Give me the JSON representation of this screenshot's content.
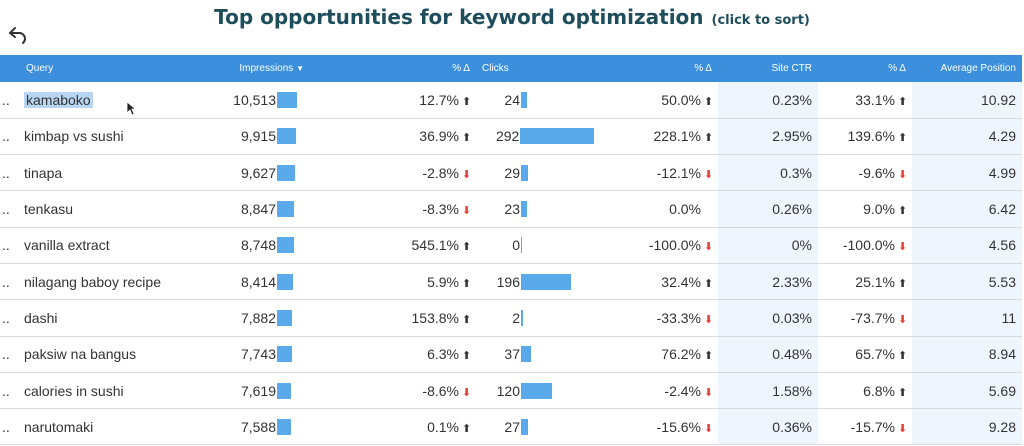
{
  "header": {
    "title": "Top opportunities for keyword optimization",
    "subtitle": "(click to sort)"
  },
  "table": {
    "columns": {
      "query": "Query",
      "impressions": "Impressions",
      "sort_indicator": "▼",
      "impressions_delta": "% Δ",
      "clicks": "Clicks",
      "clicks_delta": "% Δ",
      "site_ctr": "Site CTR",
      "ctr_delta": "% Δ",
      "avg_position": "Average Position"
    },
    "row_marker": "..",
    "rows": [
      {
        "query": "kamaboko",
        "impressions": "10,513",
        "imp_bar": 10513,
        "imp_delta": "12.7%",
        "imp_dir": "up",
        "clicks": "24",
        "clk_bar": 24,
        "clk_delta": "50.0%",
        "clk_dir": "up",
        "ctr": "0.23%",
        "ctr_delta": "33.1%",
        "ctr_dir": "up",
        "position": "10.92"
      },
      {
        "query": "kimbap vs sushi",
        "impressions": "9,915",
        "imp_bar": 9915,
        "imp_delta": "36.9%",
        "imp_dir": "up",
        "clicks": "292",
        "clk_bar": 292,
        "clk_delta": "228.1%",
        "clk_dir": "up",
        "ctr": "2.95%",
        "ctr_delta": "139.6%",
        "ctr_dir": "up",
        "position": "4.29"
      },
      {
        "query": "tinapa",
        "impressions": "9,627",
        "imp_bar": 9627,
        "imp_delta": "-2.8%",
        "imp_dir": "down",
        "clicks": "29",
        "clk_bar": 29,
        "clk_delta": "-12.1%",
        "clk_dir": "down",
        "ctr": "0.3%",
        "ctr_delta": "-9.6%",
        "ctr_dir": "down",
        "position": "4.99"
      },
      {
        "query": "tenkasu",
        "impressions": "8,847",
        "imp_bar": 8847,
        "imp_delta": "-8.3%",
        "imp_dir": "down",
        "clicks": "23",
        "clk_bar": 23,
        "clk_delta": "0.0%",
        "clk_dir": "none",
        "ctr": "0.26%",
        "ctr_delta": "9.0%",
        "ctr_dir": "up",
        "position": "6.42"
      },
      {
        "query": "vanilla extract",
        "impressions": "8,748",
        "imp_bar": 8748,
        "imp_delta": "545.1%",
        "imp_dir": "up",
        "clicks": "0",
        "clk_bar": 0,
        "clk_delta": "-100.0%",
        "clk_dir": "down",
        "ctr": "0%",
        "ctr_delta": "-100.0%",
        "ctr_dir": "down",
        "position": "4.56"
      },
      {
        "query": "nilagang baboy recipe",
        "impressions": "8,414",
        "imp_bar": 8414,
        "imp_delta": "5.9%",
        "imp_dir": "up",
        "clicks": "196",
        "clk_bar": 196,
        "clk_delta": "32.4%",
        "clk_dir": "up",
        "ctr": "2.33%",
        "ctr_delta": "25.1%",
        "ctr_dir": "up",
        "position": "5.53"
      },
      {
        "query": "dashi",
        "impressions": "7,882",
        "imp_bar": 7882,
        "imp_delta": "153.8%",
        "imp_dir": "up",
        "clicks": "2",
        "clk_bar": 2,
        "clk_delta": "-33.3%",
        "clk_dir": "down",
        "ctr": "0.03%",
        "ctr_delta": "-73.7%",
        "ctr_dir": "down",
        "position": "11"
      },
      {
        "query": "paksiw na bangus",
        "impressions": "7,743",
        "imp_bar": 7743,
        "imp_delta": "6.3%",
        "imp_dir": "up",
        "clicks": "37",
        "clk_bar": 37,
        "clk_delta": "76.2%",
        "clk_dir": "up",
        "ctr": "0.48%",
        "ctr_delta": "65.7%",
        "ctr_dir": "up",
        "position": "8.94"
      },
      {
        "query": "calories in sushi",
        "impressions": "7,619",
        "imp_bar": 7619,
        "imp_delta": "-8.6%",
        "imp_dir": "down",
        "clicks": "120",
        "clk_bar": 120,
        "clk_delta": "-2.4%",
        "clk_dir": "down",
        "ctr": "1.58%",
        "ctr_delta": "6.8%",
        "ctr_dir": "up",
        "position": "5.69"
      },
      {
        "query": "narutomaki",
        "impressions": "7,588",
        "imp_bar": 7588,
        "imp_delta": "0.1%",
        "imp_dir": "up",
        "clicks": "27",
        "clk_bar": 27,
        "clk_delta": "-15.6%",
        "clk_dir": "down",
        "ctr": "0.36%",
        "ctr_delta": "-15.7%",
        "ctr_dir": "down",
        "position": "9.28"
      }
    ]
  },
  "colors": {
    "header_bg": "#3b8fdc",
    "bar": "#5aa9ea",
    "down_arrow": "#e0423a",
    "title": "#1e4d5c",
    "ctr_shade": "#eef5fd"
  },
  "icons": {
    "undo": "undo-icon",
    "cursor": "mouse-pointer-icon"
  }
}
